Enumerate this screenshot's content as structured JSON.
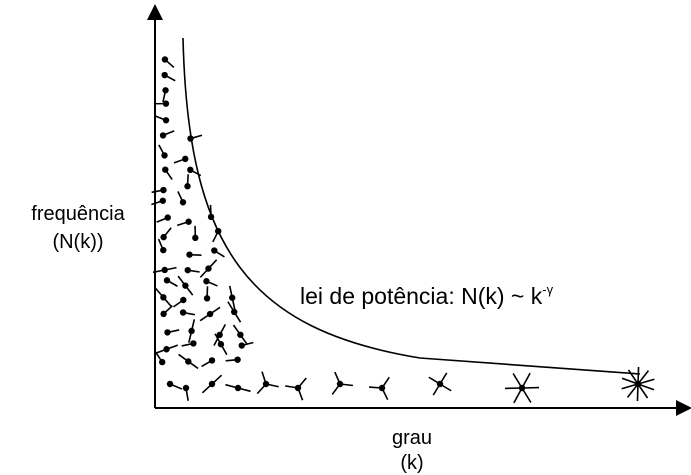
{
  "y_label": [
    "frequência",
    "(N(k))"
  ],
  "x_label": [
    "grau",
    "(k)"
  ],
  "annotation": {
    "text": "lei de potência: N(k) ~ k",
    "superscript": "-γ"
  }
}
